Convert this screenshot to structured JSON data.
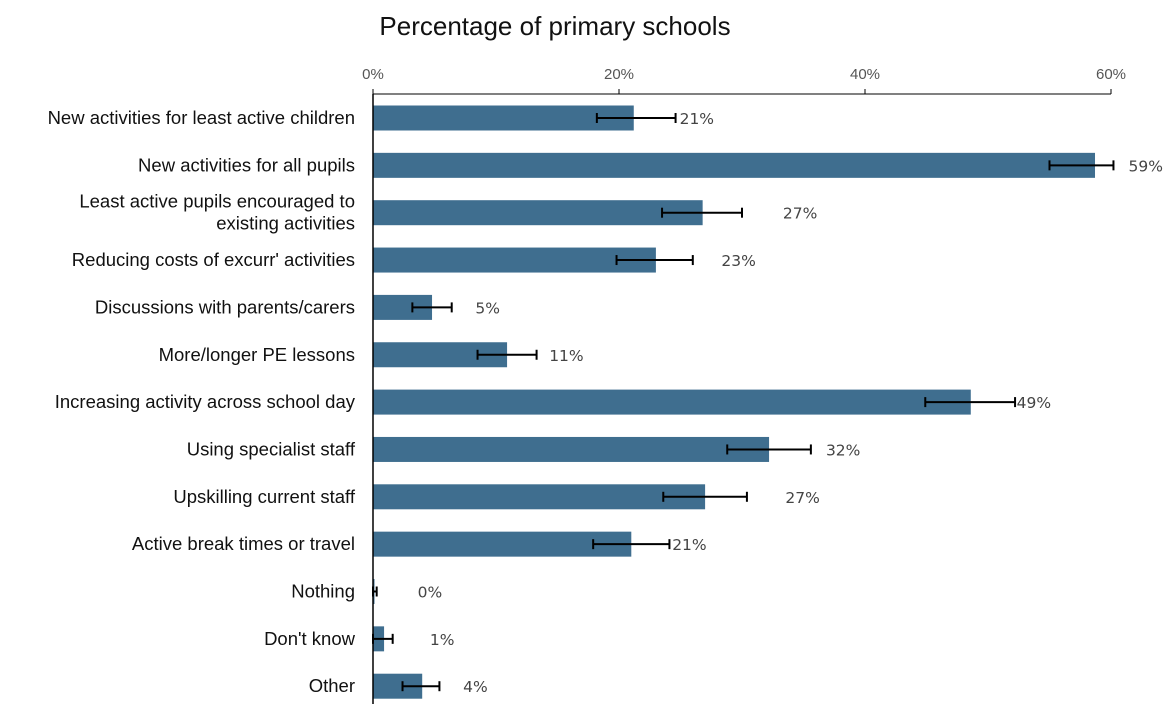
{
  "chart_data": {
    "type": "bar",
    "orientation": "horizontal",
    "title": "Percentage of primary schools",
    "xlim": [
      0,
      60
    ],
    "x_ticks": [
      {
        "value": 0,
        "label": "0%"
      },
      {
        "value": 20,
        "label": "20%"
      },
      {
        "value": 40,
        "label": "40%"
      },
      {
        "value": 60,
        "label": "60%"
      }
    ],
    "axis_position": "top",
    "grid": false,
    "error_bars": true,
    "bar_color": "#3f6e8f",
    "categories": [
      [
        "New activities for least active children"
      ],
      [
        "New activities for all pupils"
      ],
      [
        "Least active pupils encouraged to",
        "existing activities"
      ],
      [
        "Reducing costs of excurr' activities"
      ],
      [
        "Discussions with parents/carers"
      ],
      [
        "More/longer PE lessons"
      ],
      [
        "Increasing activity across school day"
      ],
      [
        "Using specialist staff"
      ],
      [
        "Upskilling current staff"
      ],
      [
        "Active break times or travel"
      ],
      [
        "Nothing"
      ],
      [
        "Don't know"
      ],
      [
        "Other "
      ]
    ],
    "values": [
      21.2,
      58.7,
      26.8,
      23.0,
      4.8,
      10.9,
      48.6,
      32.2,
      27.0,
      21.0,
      0.1,
      0.9,
      4.0
    ],
    "error_low": [
      18.2,
      55.0,
      23.5,
      19.8,
      3.2,
      8.5,
      44.9,
      28.8,
      23.6,
      17.9,
      0.0,
      0.0,
      2.4
    ],
    "error_high": [
      24.6,
      60.2,
      30.0,
      26.0,
      6.4,
      13.3,
      52.2,
      35.6,
      30.4,
      24.1,
      0.3,
      1.6,
      5.4
    ],
    "labels": [
      "21%",
      "59%",
      "27%",
      "23%",
      "5%",
      "11%",
      "49%",
      "32%",
      "27%",
      "21%",
      "0%",
      "1%",
      "4%"
    ],
    "label_x": [
      24.6,
      61.1,
      33.0,
      28.0,
      8.0,
      14.0,
      52.0,
      36.5,
      33.2,
      24.0,
      3.3,
      4.3,
      7.0
    ]
  }
}
